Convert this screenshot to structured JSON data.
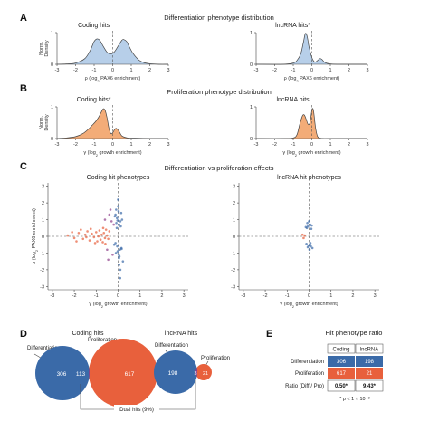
{
  "figure": {
    "panel_labels": [
      "A",
      "B",
      "C",
      "D",
      "E"
    ],
    "row_titles": {
      "A": "Differentiation phenotype distribution",
      "B": "Proliferation phenotype distribution",
      "C": "Differentiation vs proliferation effects",
      "E": "Hit phenotype ratio"
    },
    "density_ylabel": "Norm.\nDensity",
    "rho_label": "ρ (log₂ PAX6 enrichment)",
    "gamma_label": "γ (log₂ growth enrichment)",
    "colors": {
      "differentiation": "#3a6aa8",
      "proliferation": "#e8603c",
      "overlap": "#8e3f8a",
      "density_blue": "#b7cfe9",
      "density_orange": "#f3ac78"
    }
  },
  "chart_data": [
    {
      "type": "area",
      "panel": "A",
      "title": "Coding hits",
      "xlabel": "ρ (log₂ PAX6 enrichment)",
      "ylabel": "Norm.\nDensity",
      "xlim": [
        -3,
        3
      ],
      "ylim": [
        0,
        1
      ],
      "x_ticks": [
        -3,
        -2,
        -1,
        0,
        1,
        2,
        3
      ],
      "y_ticks": [
        0,
        1
      ],
      "series": [
        {
          "x": [
            -3.0,
            -2.5,
            -2.0,
            -1.5,
            -1.2,
            -1.0,
            -0.85,
            -0.7,
            -0.5,
            -0.3,
            -0.1,
            0.1,
            0.3,
            0.5,
            0.6,
            0.75,
            0.9,
            1.1,
            1.4,
            1.7,
            2.0,
            2.5,
            3.0
          ],
          "values": [
            0.0,
            0.01,
            0.04,
            0.18,
            0.45,
            0.72,
            0.8,
            0.76,
            0.56,
            0.38,
            0.33,
            0.4,
            0.58,
            0.76,
            0.78,
            0.72,
            0.55,
            0.34,
            0.14,
            0.05,
            0.02,
            0.0,
            0.0
          ]
        }
      ]
    },
    {
      "type": "area",
      "panel": "A",
      "title": "lncRNA hits*",
      "xlabel": "ρ (log₂ PAX6 enrichment)",
      "xlim": [
        -3,
        3
      ],
      "ylim": [
        0,
        1
      ],
      "x_ticks": [
        -3,
        -2,
        -1,
        0,
        1,
        2,
        3
      ],
      "y_ticks": [
        0,
        1
      ],
      "series": [
        {
          "x": [
            -3.0,
            -1.5,
            -1.0,
            -0.8,
            -0.6,
            -0.45,
            -0.35,
            -0.25,
            -0.15,
            0.0,
            0.1,
            0.2,
            0.35,
            0.45,
            0.55,
            0.7,
            1.0,
            1.5,
            3.0
          ],
          "values": [
            0.0,
            0.0,
            0.04,
            0.12,
            0.32,
            0.7,
            0.97,
            0.88,
            0.55,
            0.22,
            0.1,
            0.07,
            0.14,
            0.18,
            0.15,
            0.06,
            0.01,
            0.0,
            0.0
          ]
        }
      ]
    },
    {
      "type": "area",
      "panel": "B",
      "title": "Coding hits*",
      "xlabel": "γ (log₂ growth enrichment)",
      "ylabel": "Norm.\nDensity",
      "xlim": [
        -3,
        3
      ],
      "ylim": [
        0,
        1
      ],
      "x_ticks": [
        -3,
        -2,
        -1,
        0,
        1,
        2,
        3
      ],
      "y_ticks": [
        0,
        1
      ],
      "series": [
        {
          "x": [
            -3.0,
            -2.5,
            -2.0,
            -1.6,
            -1.3,
            -1.1,
            -0.9,
            -0.75,
            -0.6,
            -0.5,
            -0.4,
            -0.3,
            -0.2,
            -0.1,
            0.0,
            0.1,
            0.2,
            0.35,
            0.5,
            0.8,
            1.2,
            2.0,
            3.0
          ],
          "values": [
            0.0,
            0.02,
            0.06,
            0.16,
            0.3,
            0.42,
            0.55,
            0.68,
            0.85,
            0.94,
            0.88,
            0.64,
            0.32,
            0.16,
            0.18,
            0.28,
            0.32,
            0.22,
            0.08,
            0.02,
            0.01,
            0.0,
            0.0
          ]
        }
      ]
    },
    {
      "type": "area",
      "panel": "B",
      "title": "lncRNA hits",
      "xlabel": "γ (log₂ growth enrichment)",
      "xlim": [
        -3,
        3
      ],
      "ylim": [
        0,
        1
      ],
      "x_ticks": [
        -3,
        -2,
        -1,
        0,
        1,
        2,
        3
      ],
      "y_ticks": [
        0,
        1
      ],
      "series": [
        {
          "x": [
            -3.0,
            -1.5,
            -1.0,
            -0.8,
            -0.65,
            -0.5,
            -0.4,
            -0.3,
            -0.2,
            -0.1,
            0.0,
            0.05,
            0.1,
            0.2,
            0.3,
            0.4,
            0.6,
            1.0,
            3.0
          ],
          "values": [
            0.0,
            0.0,
            0.02,
            0.12,
            0.45,
            0.72,
            0.74,
            0.6,
            0.45,
            0.5,
            0.88,
            0.95,
            0.85,
            0.35,
            0.08,
            0.02,
            0.0,
            0.0,
            0.0
          ]
        }
      ]
    },
    {
      "type": "scatter",
      "panel": "C",
      "title": "Coding hit phenotypes",
      "xlabel": "γ (log₂ growth enrichment)",
      "ylabel": "ρ (log₂ PAX6 enrichment)",
      "xlim": [
        -3.2,
        3.2
      ],
      "ylim": [
        -3.2,
        3.2
      ],
      "x_ticks": [
        -3,
        -2,
        -1,
        0,
        1,
        2,
        3
      ],
      "y_ticks": [
        -3,
        -2,
        -1,
        0,
        1,
        2,
        3
      ],
      "series": [
        {
          "name": "Differentiation",
          "x": [
            -0.05,
            0.1,
            -0.12,
            0.05,
            0.18,
            -0.08,
            0.02,
            -0.15,
            0.12,
            0.0,
            -0.04,
            0.08,
            -0.1,
            0.15,
            0.06,
            -0.02,
            0.22,
            -0.18,
            0.03,
            0.1,
            -0.06,
            0.14,
            -0.12,
            0.04,
            0.0,
            0.09,
            -0.03,
            0.16,
            -0.09,
            0.05
          ],
          "y": [
            1.1,
            0.9,
            1.3,
            0.7,
            1.0,
            0.8,
            1.5,
            1.2,
            0.6,
            1.8,
            -0.6,
            -0.8,
            -1.0,
            -0.7,
            -1.2,
            -0.9,
            -1.5,
            -0.5,
            -1.1,
            -2.0,
            0.5,
            1.4,
            -0.4,
            -1.3,
            2.2,
            -2.5,
            0.95,
            -0.75,
            1.6,
            -1.7
          ]
        },
        {
          "name": "Proliferation",
          "x": [
            -2.3,
            -2.0,
            -1.8,
            -1.6,
            -1.5,
            -1.4,
            -1.3,
            -1.2,
            -1.1,
            -1.0,
            -0.95,
            -0.9,
            -0.85,
            -0.8,
            -0.75,
            -0.7,
            -0.65,
            -0.6,
            -0.55,
            -0.5,
            -0.45,
            -0.4,
            -1.7,
            -1.9,
            -1.25,
            -1.05,
            -0.68,
            -0.58,
            -2.1,
            -1.45
          ],
          "y": [
            0.05,
            -0.1,
            0.2,
            -0.15,
            0.1,
            0.3,
            -0.25,
            0.15,
            -0.05,
            0.25,
            -0.3,
            0.0,
            0.35,
            -0.2,
            0.1,
            -0.35,
            0.2,
            -0.1,
            0.4,
            0.05,
            -0.15,
            0.3,
            0.4,
            -0.3,
            0.45,
            -0.4,
            0.5,
            -0.45,
            0.25,
            -0.05
          ]
        },
        {
          "name": "Dual hits",
          "x": [
            -0.6,
            -0.4,
            -0.3,
            -0.5,
            -0.25,
            -0.35,
            -0.45,
            -0.2
          ],
          "y": [
            1.0,
            1.3,
            0.9,
            -0.8,
            -1.1,
            1.6,
            -1.4,
            0.7
          ]
        }
      ]
    },
    {
      "type": "scatter",
      "panel": "C",
      "title": "lncRNA hit phenotypes",
      "xlabel": "γ (log₂ growth enrichment)",
      "xlim": [
        -3.2,
        3.2
      ],
      "ylim": [
        -3.2,
        3.2
      ],
      "x_ticks": [
        -3,
        -2,
        -1,
        0,
        1,
        2,
        3
      ],
      "y_ticks": [
        -3,
        -2,
        -1,
        0,
        1,
        2,
        3
      ],
      "series": [
        {
          "name": "Differentiation",
          "x": [
            -0.1,
            0.05,
            -0.05,
            0.1,
            0.0,
            -0.15,
            0.12,
            -0.08,
            0.03,
            0.08,
            -0.12,
            0.15,
            -0.02,
            0.06,
            -0.06,
            0.02
          ],
          "y": [
            0.5,
            0.7,
            0.6,
            0.45,
            0.9,
            0.55,
            0.65,
            0.8,
            -0.5,
            -0.6,
            -0.45,
            -0.7,
            -0.55,
            -0.4,
            -0.65,
            -0.8
          ]
        },
        {
          "name": "Proliferation",
          "x": [
            -0.3,
            -0.25,
            -0.2
          ],
          "y": [
            0.1,
            -0.1,
            0.05
          ]
        }
      ]
    },
    {
      "type": "venn",
      "panel": "D",
      "title": "Coding hits",
      "sets": [
        {
          "name": "Differentiation",
          "only": 306
        },
        {
          "name": "Proliferation",
          "only": 617
        }
      ],
      "overlap": 113
    },
    {
      "type": "venn",
      "panel": "D",
      "title": "lncRNA hits",
      "sets": [
        {
          "name": "Differentiation",
          "only": 198
        },
        {
          "name": "Proliferation",
          "only": 21
        }
      ],
      "overlap": 3
    },
    {
      "type": "table",
      "panel": "E",
      "title": "Hit phenotype ratio",
      "columns": [
        "",
        "Coding",
        "lncRNA"
      ],
      "rows": [
        [
          "Differentiation",
          "306",
          "198"
        ],
        [
          "Proliferation",
          "617",
          "21"
        ],
        [
          "Ratio (Diff / Pro)",
          "0.50*",
          "9.43*"
        ]
      ],
      "footnote": "* p < 1 × 10⁻⁸"
    }
  ],
  "venn_note": "Dual hits (9%)"
}
